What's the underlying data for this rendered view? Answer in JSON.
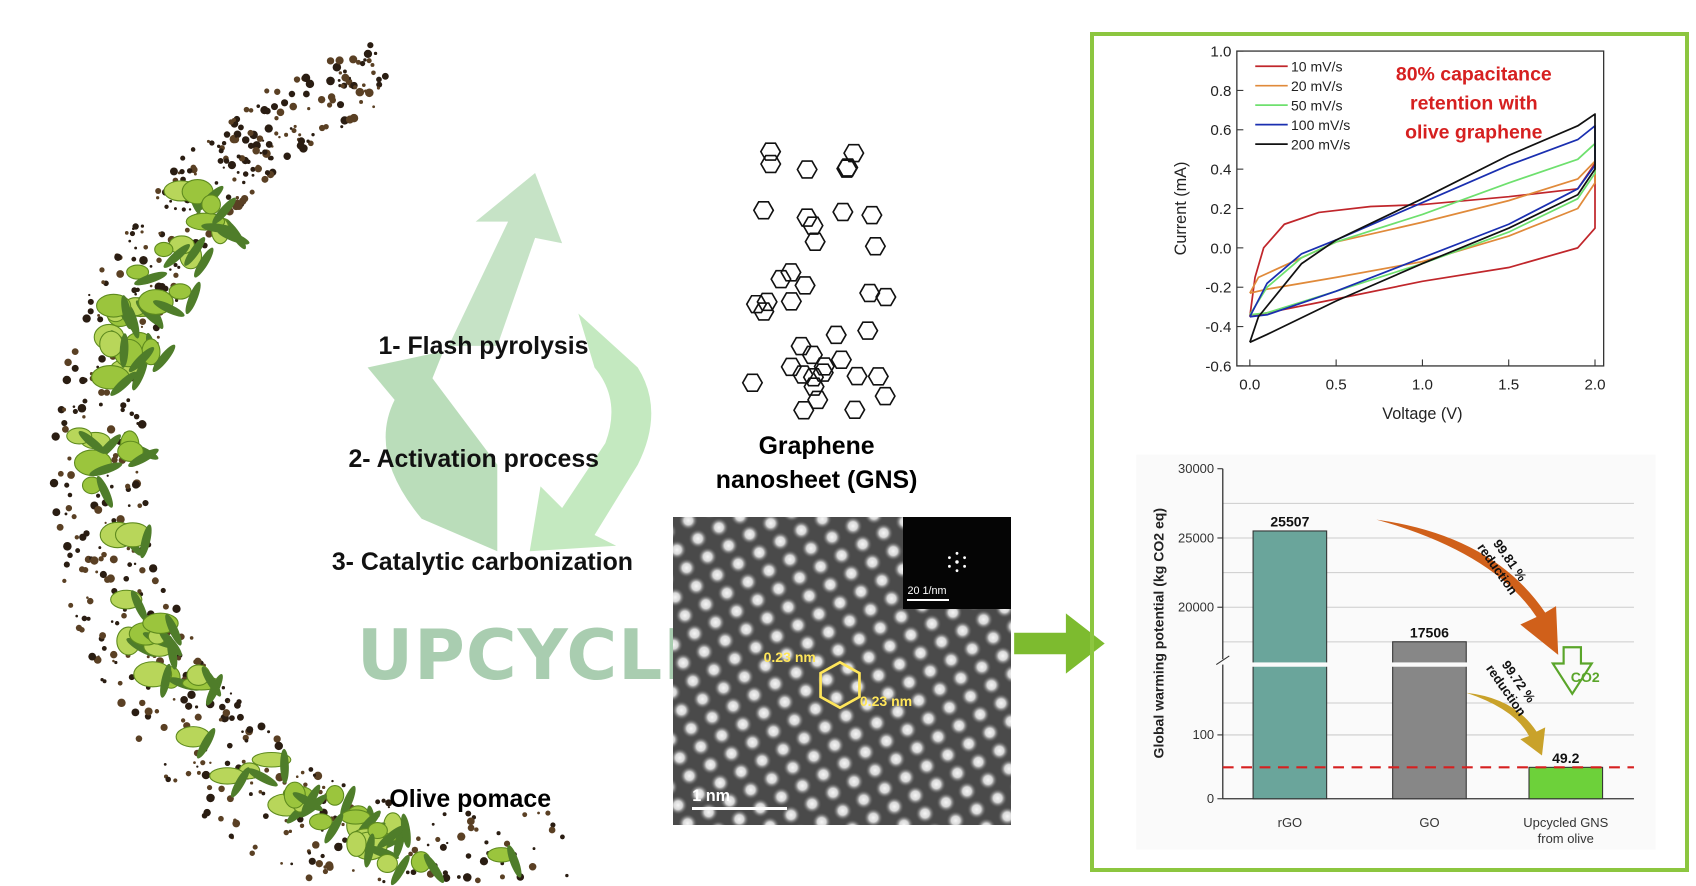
{
  "process": {
    "steps": [
      "1- Flash pyrolysis",
      "2- Activation process",
      "3- Catalytic carbonization"
    ],
    "upcycle": "UPCYCLE",
    "source": "Olive pomace"
  },
  "gns": {
    "title_line1": "Graphene",
    "title_line2": "nanosheet (GNS)",
    "lattice_label_1": "0.23 nm",
    "lattice_label_2": "0.23 nm",
    "scale_bar": "1 nm",
    "inset_scale": "20 1/nm"
  },
  "colors": {
    "frame": "#8cc63f",
    "arrow": "#7dbb2f",
    "highlight": "#d62020"
  },
  "chart_data": [
    {
      "type": "line",
      "title": "",
      "xlabel": "Voltage (V)",
      "ylabel": "Current (mA)",
      "xlim": [
        0,
        2.0
      ],
      "ylim": [
        -0.6,
        1.0
      ],
      "xticks": [
        "0.0",
        "0.5",
        "1.0",
        "1.5",
        "2.0"
      ],
      "yticks": [
        "-0.6",
        "-0.4",
        "-0.2",
        "0.0",
        "0.2",
        "0.4",
        "0.6",
        "0.8",
        "1.0"
      ],
      "annotation": [
        "80% capacitance",
        "retention with",
        "olive graphene"
      ],
      "legend": "top-left",
      "series": [
        {
          "name": "10 mV/s",
          "color": "#c0262b",
          "points": [
            [
              0,
              -0.35
            ],
            [
              0.03,
              -0.15
            ],
            [
              0.08,
              0.0
            ],
            [
              0.2,
              0.12
            ],
            [
              0.4,
              0.18
            ],
            [
              0.7,
              0.21
            ],
            [
              1.0,
              0.22
            ],
            [
              1.5,
              0.26
            ],
            [
              1.9,
              0.3
            ],
            [
              2.0,
              0.43
            ],
            [
              2.0,
              0.1
            ],
            [
              1.9,
              0.0
            ],
            [
              1.5,
              -0.1
            ],
            [
              1.0,
              -0.17
            ],
            [
              0.5,
              -0.26
            ],
            [
              0.1,
              -0.33
            ],
            [
              0,
              -0.35
            ]
          ]
        },
        {
          "name": "20 mV/s",
          "color": "#e08a3a",
          "points": [
            [
              0,
              -0.23
            ],
            [
              0.05,
              -0.15
            ],
            [
              0.3,
              -0.05
            ],
            [
              0.5,
              0.03
            ],
            [
              1.0,
              0.13
            ],
            [
              1.5,
              0.24
            ],
            [
              1.9,
              0.35
            ],
            [
              2.0,
              0.44
            ],
            [
              2.0,
              0.33
            ],
            [
              1.9,
              0.2
            ],
            [
              1.5,
              0.06
            ],
            [
              1.0,
              -0.07
            ],
            [
              0.5,
              -0.15
            ],
            [
              0.1,
              -0.21
            ],
            [
              0,
              -0.23
            ]
          ]
        },
        {
          "name": "50 mV/s",
          "color": "#6ee06e",
          "points": [
            [
              0,
              -0.34
            ],
            [
              0.1,
              -0.2
            ],
            [
              0.3,
              -0.05
            ],
            [
              0.5,
              0.03
            ],
            [
              1.0,
              0.17
            ],
            [
              1.5,
              0.33
            ],
            [
              1.9,
              0.45
            ],
            [
              2.0,
              0.53
            ],
            [
              2.0,
              0.38
            ],
            [
              1.9,
              0.25
            ],
            [
              1.5,
              0.08
            ],
            [
              1.0,
              -0.08
            ],
            [
              0.5,
              -0.22
            ],
            [
              0.1,
              -0.33
            ],
            [
              0,
              -0.34
            ]
          ]
        },
        {
          "name": "100 mV/s",
          "color": "#1a2fb0",
          "points": [
            [
              0,
              -0.35
            ],
            [
              0.1,
              -0.18
            ],
            [
              0.3,
              -0.03
            ],
            [
              0.5,
              0.04
            ],
            [
              1.0,
              0.23
            ],
            [
              1.5,
              0.42
            ],
            [
              1.9,
              0.55
            ],
            [
              2.0,
              0.62
            ],
            [
              2.0,
              0.42
            ],
            [
              1.9,
              0.3
            ],
            [
              1.5,
              0.12
            ],
            [
              1.0,
              -0.05
            ],
            [
              0.5,
              -0.22
            ],
            [
              0.1,
              -0.34
            ],
            [
              0,
              -0.35
            ]
          ]
        },
        {
          "name": "200 mV/s",
          "color": "#111111",
          "points": [
            [
              0,
              -0.48
            ],
            [
              0.05,
              -0.35
            ],
            [
              0.3,
              -0.08
            ],
            [
              0.5,
              0.04
            ],
            [
              1.0,
              0.25
            ],
            [
              1.5,
              0.47
            ],
            [
              1.9,
              0.62
            ],
            [
              2.0,
              0.68
            ],
            [
              2.0,
              0.4
            ],
            [
              1.9,
              0.27
            ],
            [
              1.5,
              0.1
            ],
            [
              1.0,
              -0.08
            ],
            [
              0.5,
              -0.27
            ],
            [
              0.1,
              -0.44
            ],
            [
              0,
              -0.48
            ]
          ]
        }
      ]
    },
    {
      "type": "bar",
      "title": "",
      "ylabel": "Global warming potential (kg CO2 eq)",
      "categories": [
        "rGO",
        "GO",
        "Upcycled GNS from olive"
      ],
      "category_lines": [
        [
          "rGO"
        ],
        [
          "GO"
        ],
        [
          "Upcycled GNS",
          "from olive"
        ]
      ],
      "values": [
        25507,
        17506,
        49.2
      ],
      "value_labels": [
        "25507",
        "17506",
        "49.2"
      ],
      "colors": [
        "#6aa59b",
        "#878787",
        "#6dd13a"
      ],
      "yticks": [
        "0",
        "100",
        "20000",
        "25000",
        "30000"
      ],
      "axis_break": true,
      "reference_line": 49.2,
      "annotations": [
        {
          "text": [
            "99.81 %",
            "reduction"
          ]
        },
        {
          "text": [
            "99.72 %",
            "reduction"
          ]
        }
      ],
      "co2_icon": "CO2"
    }
  ]
}
